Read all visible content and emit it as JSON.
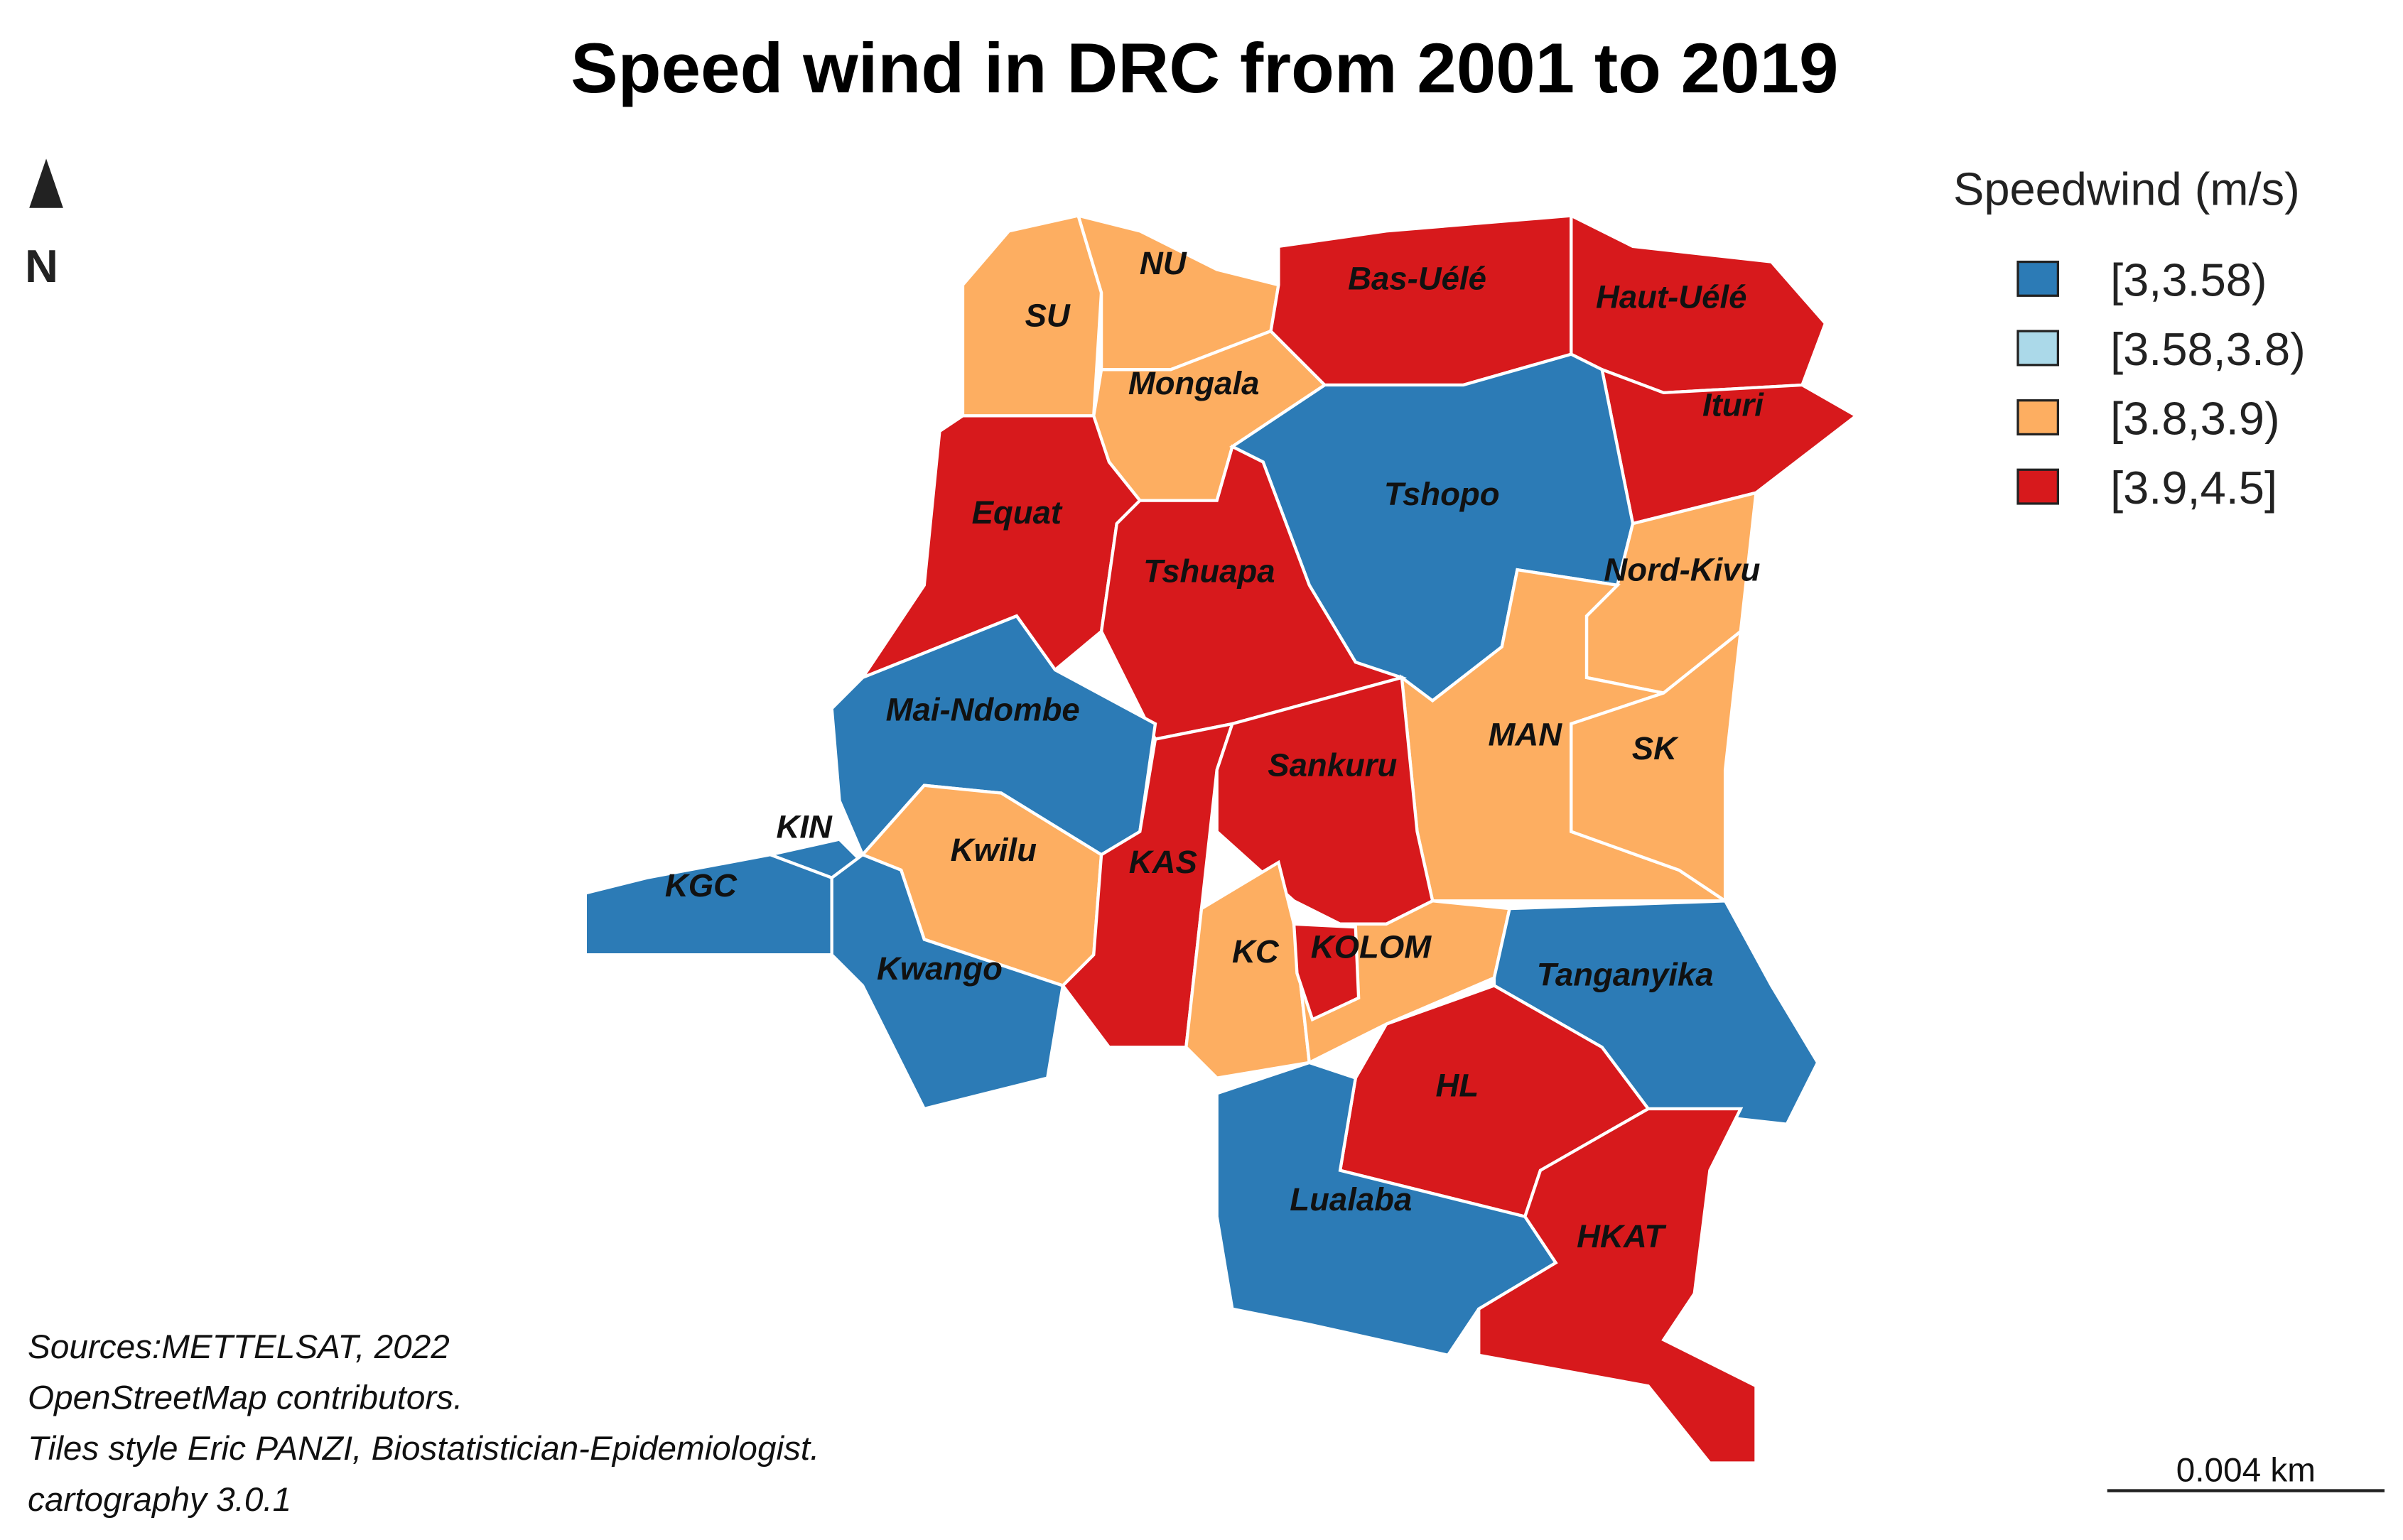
{
  "title": "Speed wind in DRC from 2001 to 2019",
  "north": "N",
  "legend": {
    "title": "Speedwind (m/s)",
    "items": [
      {
        "label": "[3,3.58)",
        "color": "#2c7bb6"
      },
      {
        "label": "[3.58,3.8)",
        "color": "#abd9e9"
      },
      {
        "label": "[3.8,3.9)",
        "color": "#fdae61"
      },
      {
        "label": "[3.9,4.5]",
        "color": "#d7191c"
      }
    ]
  },
  "regions": [
    {
      "label": "SU",
      "class": "[3.8,3.9)"
    },
    {
      "label": "NU",
      "class": "[3.8,3.9)"
    },
    {
      "label": "Mongala",
      "class": "[3.8,3.9)"
    },
    {
      "label": "Bas-Uélé",
      "class": "[3.9,4.5]"
    },
    {
      "label": "Haut-Uélé",
      "class": "[3.9,4.5]"
    },
    {
      "label": "Ituri",
      "class": "[3.9,4.5]"
    },
    {
      "label": "Tshopo",
      "class": "[3,3.58)"
    },
    {
      "label": "Equat",
      "class": "[3.9,4.5]"
    },
    {
      "label": "Tshuapa",
      "class": "[3.9,4.5]"
    },
    {
      "label": "Nord-Kivu",
      "class": "[3.8,3.9)"
    },
    {
      "label": "MAN",
      "class": "[3.8,3.9)"
    },
    {
      "label": "SK",
      "class": "[3.8,3.9)"
    },
    {
      "label": "Mai-Ndombe",
      "class": "[3,3.58)"
    },
    {
      "label": "KIN",
      "class": "[3,3.58)"
    },
    {
      "label": "KGC",
      "class": "[3,3.58)"
    },
    {
      "label": "Kwilu",
      "class": "[3.8,3.9)"
    },
    {
      "label": "Kwango",
      "class": "[3,3.58)"
    },
    {
      "label": "KAS",
      "class": "[3.9,4.5]"
    },
    {
      "label": "Sankuru",
      "class": "[3.9,4.5]"
    },
    {
      "label": "KC",
      "class": "[3.8,3.9)"
    },
    {
      "label": "KOLOM",
      "class": "[3.8,3.9)"
    },
    {
      "label": "Tanganyika",
      "class": "[3,3.58)"
    },
    {
      "label": "HL",
      "class": "[3.9,4.5]"
    },
    {
      "label": "Lualaba",
      "class": "[3,3.58)"
    },
    {
      "label": "HKAT",
      "class": "[3.9,4.5]"
    }
  ],
  "sources": [
    "Sources:METTELSAT, 2022",
    " OpenStreetMap contributors.",
    "Tiles style Eric PANZI, Biostatistician-Epidemiologist.",
    "cartography 3.0.1"
  ],
  "scale_bar": "0.004 km"
}
